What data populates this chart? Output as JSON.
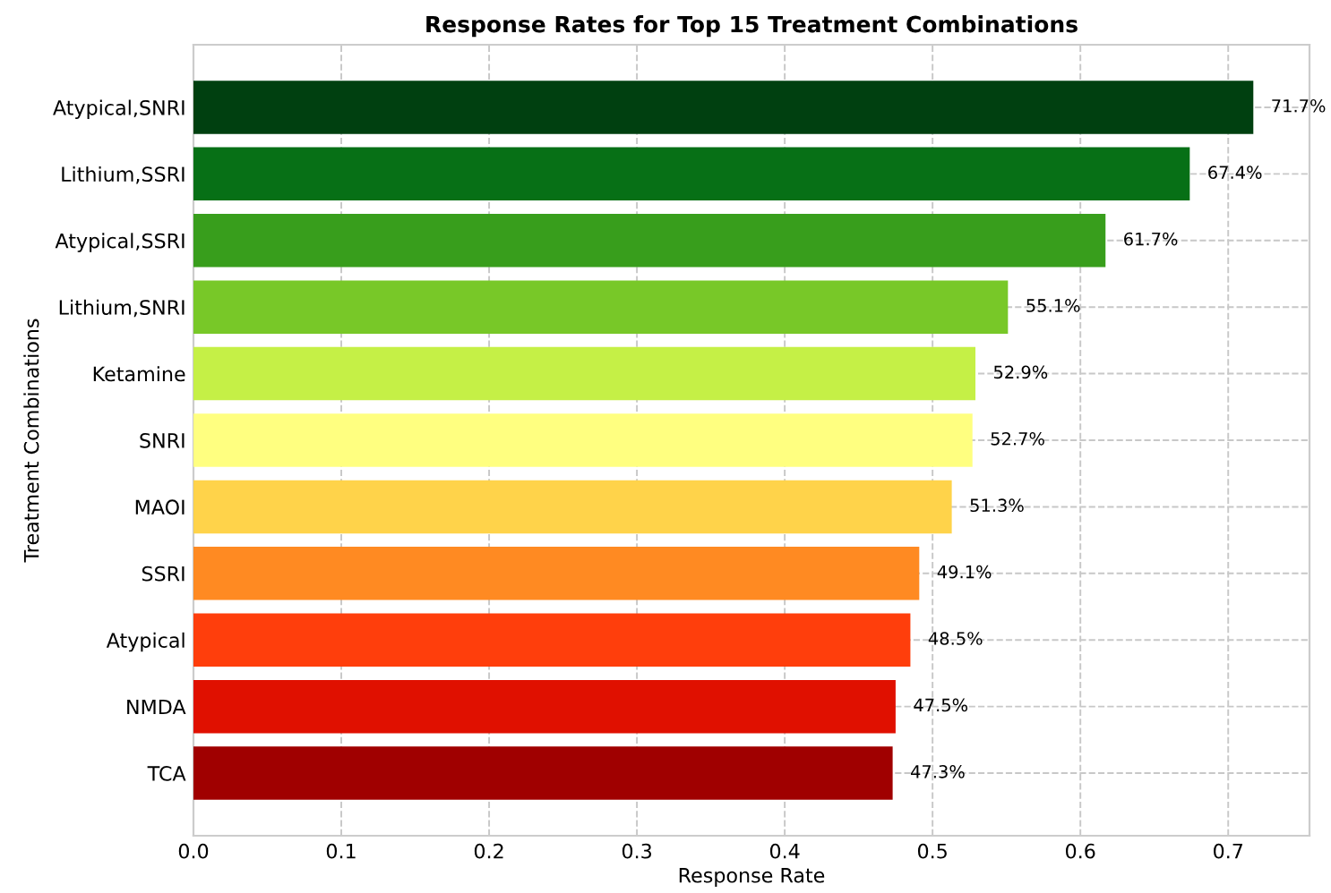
{
  "chart_data": {
    "type": "bar",
    "orientation": "horizontal",
    "title": "Response Rates for Top 15 Treatment Combinations",
    "xlabel": "Response Rate",
    "ylabel": "Treatment Combinations",
    "categories": [
      "Atypical,SNRI",
      "Lithium,SSRI",
      "Atypical,SSRI",
      "Lithium,SNRI",
      "Ketamine",
      "SNRI",
      "MAOI",
      "SSRI",
      "Atypical",
      "NMDA",
      "TCA"
    ],
    "values": [
      0.717,
      0.674,
      0.617,
      0.551,
      0.529,
      0.527,
      0.513,
      0.491,
      0.485,
      0.475,
      0.473
    ],
    "value_labels": [
      "71.7%",
      "67.4%",
      "61.7%",
      "55.1%",
      "52.9%",
      "52.7%",
      "51.3%",
      "49.1%",
      "48.5%",
      "47.5%",
      "47.3%"
    ],
    "colors": [
      "#004010",
      "#077016",
      "#389e1c",
      "#78c828",
      "#c5f046",
      "#ffff80",
      "#ffd34a",
      "#ff8a22",
      "#ff3e0c",
      "#e01000",
      "#a00000"
    ],
    "xlim": [
      0,
      0.755
    ],
    "xticks": [
      {
        "value": 0,
        "label": "0.0"
      },
      0.1,
      0.2,
      0.3,
      0.4,
      0.5,
      0.6,
      0.7
    ],
    "grid": true
  }
}
